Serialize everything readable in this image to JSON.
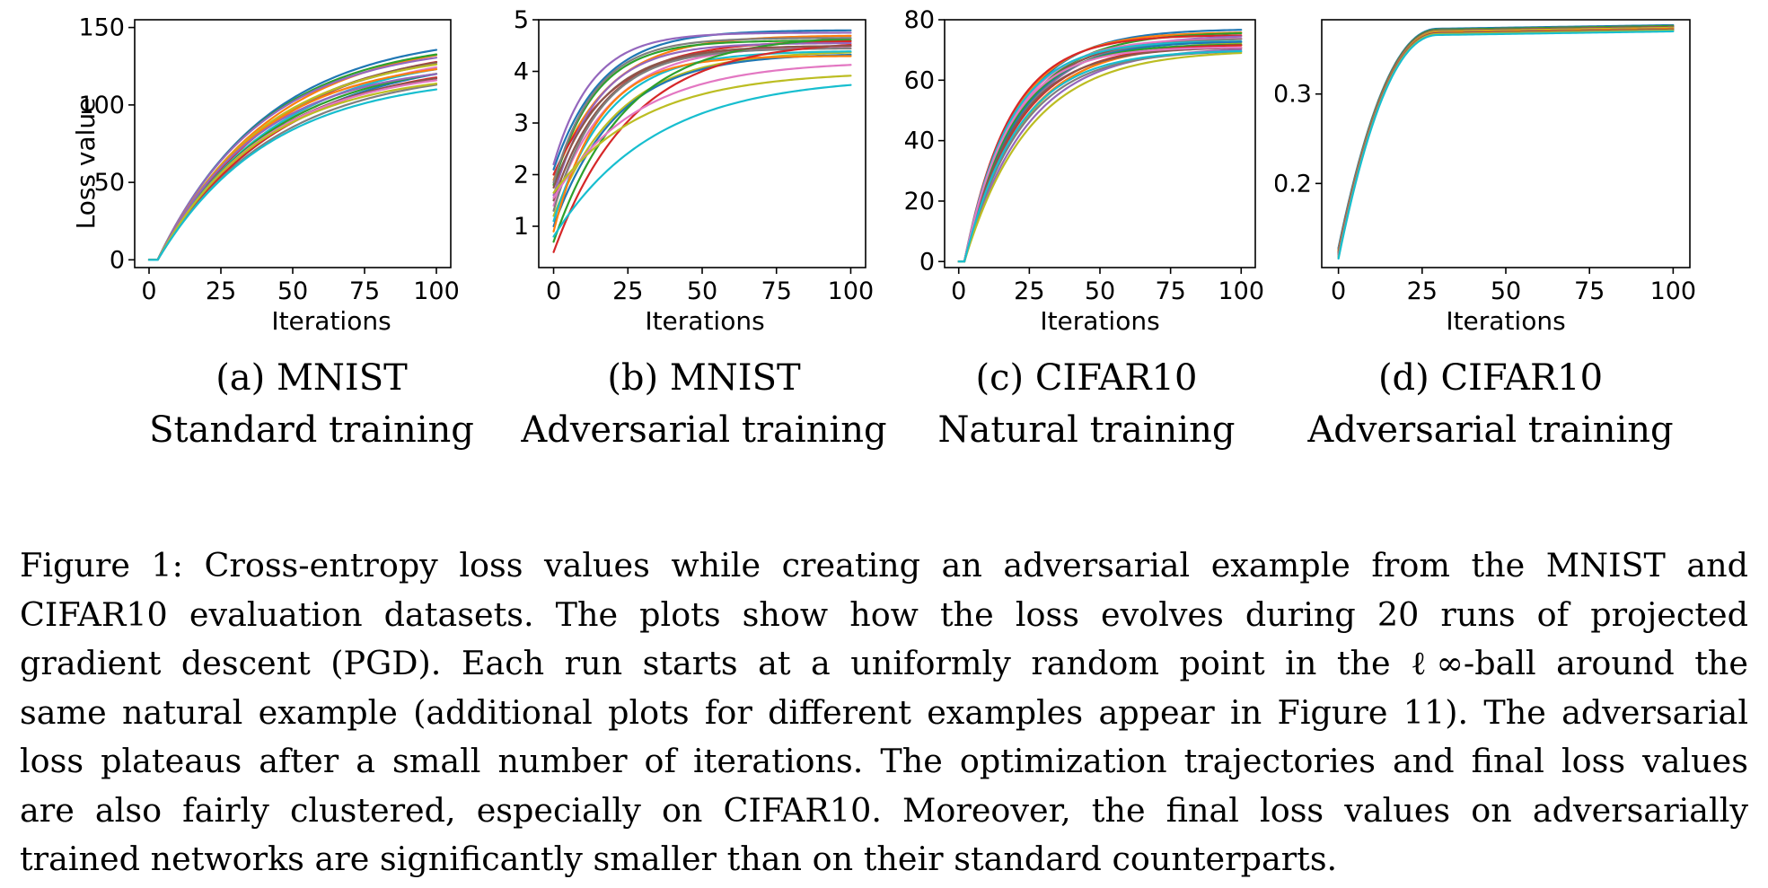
{
  "chart_data": [
    {
      "type": "line",
      "title": "",
      "xlabel": "Iterations",
      "ylabel": "Loss value",
      "xlim": [
        -5,
        105
      ],
      "ylim": [
        -5,
        155
      ],
      "xticks": [
        "0",
        "25",
        "50",
        "75",
        "100"
      ],
      "xtick_values": [
        0,
        25,
        50,
        75,
        100
      ],
      "yticks": [
        "0",
        "50",
        "100",
        "150"
      ],
      "ytick_values": [
        0,
        50,
        100,
        150
      ],
      "runs": 20,
      "series_model": "rise from initial loss to plateau",
      "series_start_values": [
        0,
        0,
        0,
        0,
        0,
        0,
        0,
        0,
        0,
        0,
        0,
        0,
        0,
        0,
        0,
        0,
        0,
        0,
        0,
        0
      ],
      "series_final_values": [
        147,
        145,
        143,
        141,
        140,
        139,
        138,
        137,
        136,
        135,
        134,
        132,
        131,
        130,
        128,
        127,
        125,
        124,
        122,
        120
      ],
      "series_time_constants": [
        38,
        40,
        37,
        41,
        36,
        39,
        42,
        38,
        37,
        40,
        43,
        36,
        39,
        41,
        35,
        38,
        37,
        40,
        36,
        39
      ],
      "series_delay": 3
    },
    {
      "type": "line",
      "title": "",
      "xlabel": "Iterations",
      "ylabel": "",
      "xlim": [
        -5,
        105
      ],
      "ylim": [
        0.2,
        5.0
      ],
      "xticks": [
        "0",
        "25",
        "50",
        "75",
        "100"
      ],
      "xtick_values": [
        0,
        25,
        50,
        75,
        100
      ],
      "yticks": [
        "1",
        "2",
        "3",
        "4",
        "5"
      ],
      "ytick_values": [
        1,
        2,
        3,
        4,
        5
      ],
      "runs": 20,
      "series_model": "rise from initial loss to plateau",
      "series_start_values": [
        2.1,
        1.9,
        1.8,
        2.0,
        1.6,
        1.5,
        1.4,
        1.3,
        1.2,
        1.1,
        1.0,
        0.9,
        0.7,
        0.5,
        2.2,
        1.75,
        1.55,
        1.85,
        1.65,
        0.8
      ],
      "series_final_values": [
        4.8,
        4.7,
        4.6,
        4.6,
        4.55,
        4.5,
        4.5,
        4.45,
        4.4,
        4.4,
        4.35,
        4.3,
        4.7,
        4.6,
        4.75,
        4.5,
        4.2,
        4.65,
        4.0,
        3.9
      ],
      "series_time_constants": [
        16,
        18,
        14,
        20,
        15,
        17,
        19,
        16,
        22,
        18,
        21,
        15,
        24,
        26,
        13,
        17,
        28,
        14,
        30,
        34
      ],
      "series_delay": 0
    },
    {
      "type": "line",
      "title": "",
      "xlabel": "Iterations",
      "ylabel": "",
      "xlim": [
        -5,
        105
      ],
      "ylim": [
        -2,
        80
      ],
      "xticks": [
        "0",
        "25",
        "50",
        "75",
        "100"
      ],
      "xtick_values": [
        0,
        25,
        50,
        75,
        100
      ],
      "yticks": [
        "0",
        "20",
        "40",
        "60",
        "80"
      ],
      "ytick_values": [
        0,
        20,
        40,
        60,
        80
      ],
      "runs": 20,
      "series_model": "rise from initial loss to plateau",
      "series_start_values": [
        0,
        0,
        0,
        0,
        0,
        0,
        0,
        0,
        0,
        0,
        0,
        0,
        0,
        0,
        0,
        0,
        0,
        0,
        0,
        0
      ],
      "series_final_values": [
        77,
        76,
        76,
        75,
        75,
        74,
        74,
        74,
        73,
        73,
        73,
        72,
        72,
        72,
        71,
        71,
        71,
        70,
        70,
        70
      ],
      "series_time_constants": [
        18,
        17,
        19,
        16,
        20,
        18,
        17,
        19,
        21,
        16,
        18,
        20,
        17,
        19,
        22,
        18,
        16,
        20,
        23,
        19
      ],
      "series_delay": 2
    },
    {
      "type": "line",
      "title": "",
      "xlabel": "Iterations",
      "ylabel": "",
      "xlim": [
        -5,
        105
      ],
      "ylim": [
        0.106,
        0.383
      ],
      "xticks": [
        "0",
        "25",
        "50",
        "75",
        "100"
      ],
      "xtick_values": [
        0,
        25,
        50,
        75,
        100
      ],
      "yticks": [
        "0.2",
        "0.3"
      ],
      "ytick_values": [
        0.2,
        0.3
      ],
      "runs": 20,
      "series_model": "s-curve from initial loss to plateau",
      "series_start_values": [
        0.128,
        0.126,
        0.125,
        0.124,
        0.123,
        0.122,
        0.121,
        0.12,
        0.119,
        0.118,
        0.127,
        0.125,
        0.123,
        0.122,
        0.121,
        0.12,
        0.119,
        0.118,
        0.117,
        0.116
      ],
      "series_final_values": [
        0.377,
        0.376,
        0.376,
        0.375,
        0.375,
        0.375,
        0.374,
        0.374,
        0.374,
        0.373,
        0.373,
        0.373,
        0.372,
        0.372,
        0.372,
        0.372,
        0.371,
        0.371,
        0.371,
        0.37
      ],
      "series_rise_end": 30,
      "series_delay": 0
    }
  ],
  "series_colors": [
    "#1f77b4",
    "#ff7f0e",
    "#2ca02c",
    "#d62728",
    "#9467bd",
    "#8c564b",
    "#e377c2",
    "#7f7f7f",
    "#bcbd22",
    "#17becf",
    "#1f77b4",
    "#ff7f0e",
    "#2ca02c",
    "#d62728",
    "#9467bd",
    "#8c564b",
    "#e377c2",
    "#7f7f7f",
    "#bcbd22",
    "#17becf"
  ],
  "subcaptions": [
    {
      "line1": "(a) MNIST",
      "line2": "Standard training"
    },
    {
      "line1": "(b) MNIST",
      "line2": "Adversarial training"
    },
    {
      "line1": "(c) CIFAR10",
      "line2": "Natural training"
    },
    {
      "line1": "(d) CIFAR10",
      "line2": "Adversarial training"
    }
  ],
  "caption": {
    "lines": [
      "Figure 1: Cross-entropy loss values while creating an adversarial example from the MNIST and",
      "CIFAR10 evaluation datasets. The plots show how the loss evolves during 20 runs of projected",
      "gradient descent (PGD). Each run starts at a uniformly random point in the ℓ∞-ball around the",
      "same natural example (additional plots for different examples appear in Figure 11). The adversarial",
      "loss plateaus after a small number of iterations. The optimization trajectories and final loss values",
      "are also fairly clustered, especially on CIFAR10. Moreover, the final loss values on adversarially",
      "trained networks are significantly smaller than on their standard counterparts."
    ]
  }
}
